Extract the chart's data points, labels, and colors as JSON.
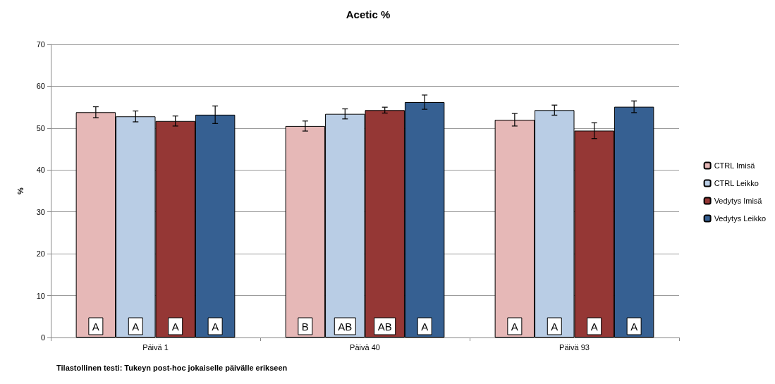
{
  "chart_data": {
    "type": "bar",
    "title": "Acetic %",
    "ylabel": "%",
    "categories": [
      "Päivä 1",
      "Päivä 40",
      "Päivä 93"
    ],
    "series": [
      {
        "name": "CTRL Imisä",
        "color": "#e6b8b7",
        "values": [
          53.8,
          50.5,
          52.0
        ],
        "errors": [
          1.3,
          1.2,
          1.5
        ]
      },
      {
        "name": "CTRL Leikko",
        "color": "#b9cde5",
        "values": [
          52.8,
          53.4,
          54.3
        ],
        "errors": [
          1.3,
          1.2,
          1.2
        ]
      },
      {
        "name": "Vedytys Imisä",
        "color": "#953735",
        "values": [
          51.7,
          54.3,
          49.4
        ],
        "errors": [
          1.2,
          0.7,
          1.9
        ]
      },
      {
        "name": "Vedytys Leikko",
        "color": "#366092",
        "values": [
          53.2,
          56.2,
          55.1
        ],
        "errors": [
          2.1,
          1.7,
          1.4
        ]
      }
    ],
    "ylim": [
      0,
      70
    ],
    "yticks": [
      0,
      10,
      20,
      30,
      40,
      50,
      60,
      70
    ],
    "grid": "y",
    "legend": "right",
    "annotations": [
      "A",
      "A",
      "A",
      "A",
      "B",
      "AB",
      "AB",
      "A",
      "A",
      "A",
      "A",
      "A",
      "Tilastollinen testi: Tukeyn post-hoc jokaiselle päivälle erikseen"
    ]
  }
}
